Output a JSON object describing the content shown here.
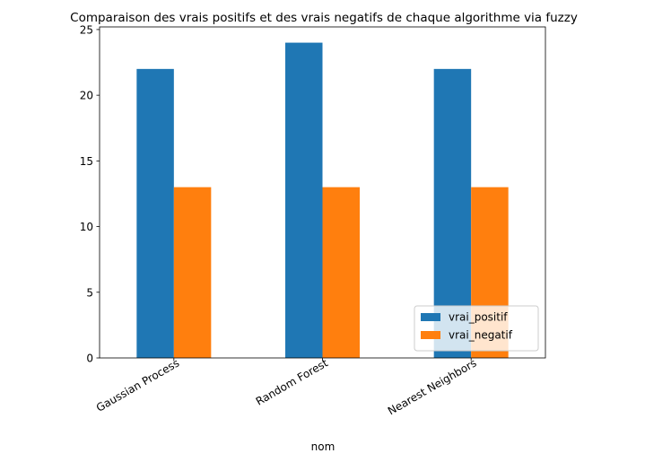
{
  "chart_data": {
    "type": "bar",
    "title": "Comparaison des vrais positifs et des vrais negatifs de chaque algorithme via fuzzy",
    "xlabel": "nom",
    "ylabel": "",
    "categories": [
      "Gaussian Process",
      "Random Forest",
      "Nearest Neighbors"
    ],
    "series": [
      {
        "name": "vrai_positif",
        "values": [
          22,
          24,
          22
        ],
        "color": "#1f77b4"
      },
      {
        "name": "vrai_negatif",
        "values": [
          13,
          13,
          13
        ],
        "color": "#ff7f0e"
      }
    ],
    "ylim": [
      0,
      25.2
    ],
    "yticks": [
      "0",
      "5",
      "10",
      "15",
      "20",
      "25"
    ],
    "grid": false,
    "legend_position": "bottom-right"
  }
}
